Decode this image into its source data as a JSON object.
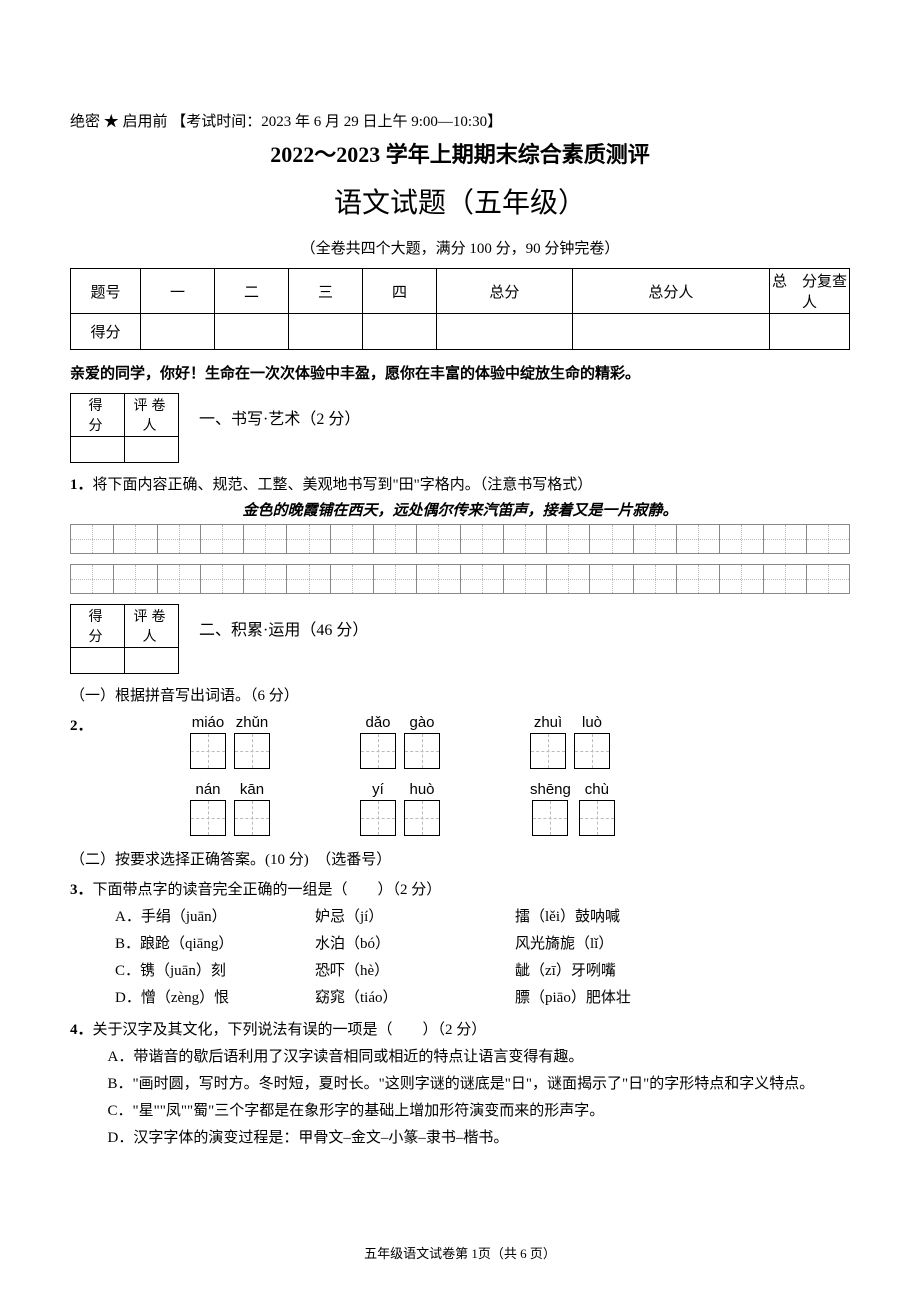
{
  "header": {
    "secret": "绝密 ★ 启用前 【考试时间：2023 年 6 月 29 日上午 9:00—10:30】",
    "main_title": "2022～2023 学年上期期末综合素质测评",
    "sub_title": "语文试题（五年级）",
    "meta": "（全卷共四个大题，满分 100 分，90 分钟完卷）"
  },
  "score_table": {
    "r1": [
      "题号",
      "一",
      "二",
      "三",
      "四",
      "总分",
      "总分人",
      "总　分复查人"
    ],
    "r2_label": "得分"
  },
  "greeting": "亲爱的同学，你好！生命在一次次体验中丰盈，愿你在丰富的体验中绽放生命的精彩。",
  "mini": {
    "c1": "得　分",
    "c2": "评卷人"
  },
  "sec1": {
    "heading": "一、书写·艺术（2 分）",
    "q1_num": "1．",
    "q1_text": "将下面内容正确、规范、工整、美观地书写到\"田\"字格内。（注意书写格式）",
    "copy_line": "金色的晚霞铺在西天，远处偶尔传来汽笛声，接着又是一片寂静。"
  },
  "sec2": {
    "heading": "二、积累·运用（46 分）",
    "sub1": "（一）根据拼音写出词语。（6 分）",
    "q2_num": "2．",
    "pinyin": {
      "row1": [
        [
          "miáo",
          "zhǔn"
        ],
        [
          "dǎo",
          "gào"
        ],
        [
          "zhuì",
          "luò"
        ]
      ],
      "row2": [
        [
          "nán",
          "kān"
        ],
        [
          "yí",
          "huò"
        ],
        [
          "shēng",
          "chù"
        ]
      ]
    },
    "sub2": "（二）按要求选择正确答案。(10 分)　（选番号）",
    "q3": {
      "num": "3．",
      "stem": "下面带点字的读音完全正确的一组是（　　）（2 分）",
      "opts": [
        {
          "a": "A．手绢（juān）",
          "b": "妒忌（jí）",
          "c": "擂（lěi）鼓呐喊"
        },
        {
          "a": "B．踉跄（qiāng）",
          "b": "水泊（bó）",
          "c": "风光旖旎（lǐ）"
        },
        {
          "a": "C．镌（juān）刻",
          "b": "恐吓（hè）",
          "c": "龇（zī）牙咧嘴"
        },
        {
          "a": "D．憎（zèng）恨",
          "b": "窈窕（tiáo）",
          "c": "膘（piāo）肥体壮"
        }
      ]
    },
    "q4": {
      "num": "4．",
      "stem": "关于汉字及其文化，下列说法有误的一项是（　　）（2 分）",
      "opts": [
        "A．带谐音的歇后语利用了汉字读音相同或相近的特点让语言变得有趣。",
        "B．\"画时圆，写时方。冬时短，夏时长。\"这则字谜的谜底是\"日\"，谜面揭示了\"日\"的字形特点和字义特点。",
        "C．\"星\"\"凤\"\"蜀\"三个字都是在象形字的基础上增加形符演变而来的形声字。",
        "D．汉字字体的演变过程是：甲骨文–金文–小篆–隶书–楷书。"
      ]
    }
  },
  "footer": "五年级语文试卷第 1页（共 6 页）"
}
